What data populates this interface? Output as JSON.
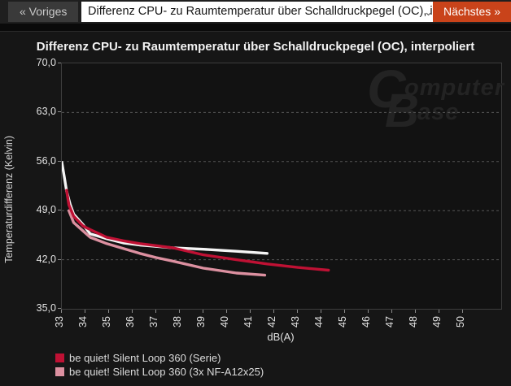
{
  "nav": {
    "prev_label": "« Voriges",
    "selector_value": "Differenz CPU- zu Raumtemperatur über Schalldruckpegel (OC), in",
    "chevron": "⌄",
    "next_label": "Nächstes »",
    "next_button_color": "#c9431a"
  },
  "watermark": {
    "big_c": "C",
    "text_top": "omputer",
    "big_b": "B",
    "text_bot": "ase"
  },
  "chart_data": {
    "type": "line",
    "title": "Differenz CPU- zu Raumtemperatur über Schalldruckpegel (OC), interpoliert",
    "xlabel": "dB(A)",
    "ylabel": "Temperaturdifferenz (Kelvin)",
    "xlim": [
      33,
      51.62
    ],
    "ylim": [
      35,
      70
    ],
    "xticks": [
      33,
      34,
      35,
      36,
      37,
      38,
      39,
      40,
      41,
      42,
      43,
      44,
      45,
      46,
      47,
      48,
      49,
      50
    ],
    "xtick_labels": [
      "33",
      "34",
      "35",
      "36",
      "37",
      "38",
      "39",
      "40",
      "41",
      "42",
      "43",
      "44",
      "45",
      "46",
      "47",
      "48",
      "49",
      "50"
    ],
    "yticks": [
      70,
      63,
      56,
      49,
      42,
      35
    ],
    "ytick_labels": [
      "70,0",
      "63,0",
      "56,0",
      "49,0",
      "42,0",
      "35,0"
    ],
    "grid": "horizontal-dashed",
    "grid_color": "#565656",
    "legend_position": "bottom-left",
    "series": [
      {
        "name": "be quiet! Silent Loop 360 (Serie)",
        "color": "#bf1134",
        "show_in_legend": true,
        "points": [
          [
            33.2,
            51.9
          ],
          [
            33.3,
            49.8
          ],
          [
            33.5,
            48.2
          ],
          [
            33.9,
            46.8
          ],
          [
            34.2,
            46.3
          ],
          [
            34.9,
            45.2
          ],
          [
            35.6,
            44.7
          ],
          [
            36.3,
            44.3
          ],
          [
            37.0,
            44.0
          ],
          [
            37.7,
            43.7
          ],
          [
            39.0,
            42.7
          ],
          [
            40.4,
            42.0
          ],
          [
            41.7,
            41.4
          ],
          [
            43.0,
            40.9
          ],
          [
            44.3,
            40.5
          ]
        ]
      },
      {
        "name": "be quiet! Silent Loop 360 (3x NF-A12x25)",
        "color": "#dc90a0",
        "show_in_legend": true,
        "points": [
          [
            33.3,
            49.0
          ],
          [
            33.5,
            47.3
          ],
          [
            33.9,
            46.1
          ],
          [
            34.2,
            45.2
          ],
          [
            34.9,
            44.3
          ],
          [
            35.6,
            43.6
          ],
          [
            36.3,
            42.9
          ],
          [
            37.0,
            42.3
          ],
          [
            37.7,
            41.8
          ],
          [
            39.0,
            40.8
          ],
          [
            40.4,
            40.1
          ],
          [
            41.6,
            39.8
          ]
        ]
      },
      {
        "name": "",
        "color": "#f5f5f5",
        "show_in_legend": false,
        "points": [
          [
            33.0,
            55.9
          ],
          [
            33.1,
            53.9
          ],
          [
            33.2,
            51.8
          ],
          [
            33.35,
            49.9
          ],
          [
            33.5,
            48.5
          ],
          [
            33.9,
            47.0
          ],
          [
            34.2,
            45.7
          ],
          [
            34.9,
            45.0
          ],
          [
            35.6,
            44.4
          ],
          [
            36.3,
            44.1
          ],
          [
            37.0,
            43.9
          ],
          [
            37.7,
            43.7
          ],
          [
            39.0,
            43.5
          ],
          [
            40.4,
            43.2
          ],
          [
            41.7,
            42.9
          ]
        ]
      }
    ]
  }
}
